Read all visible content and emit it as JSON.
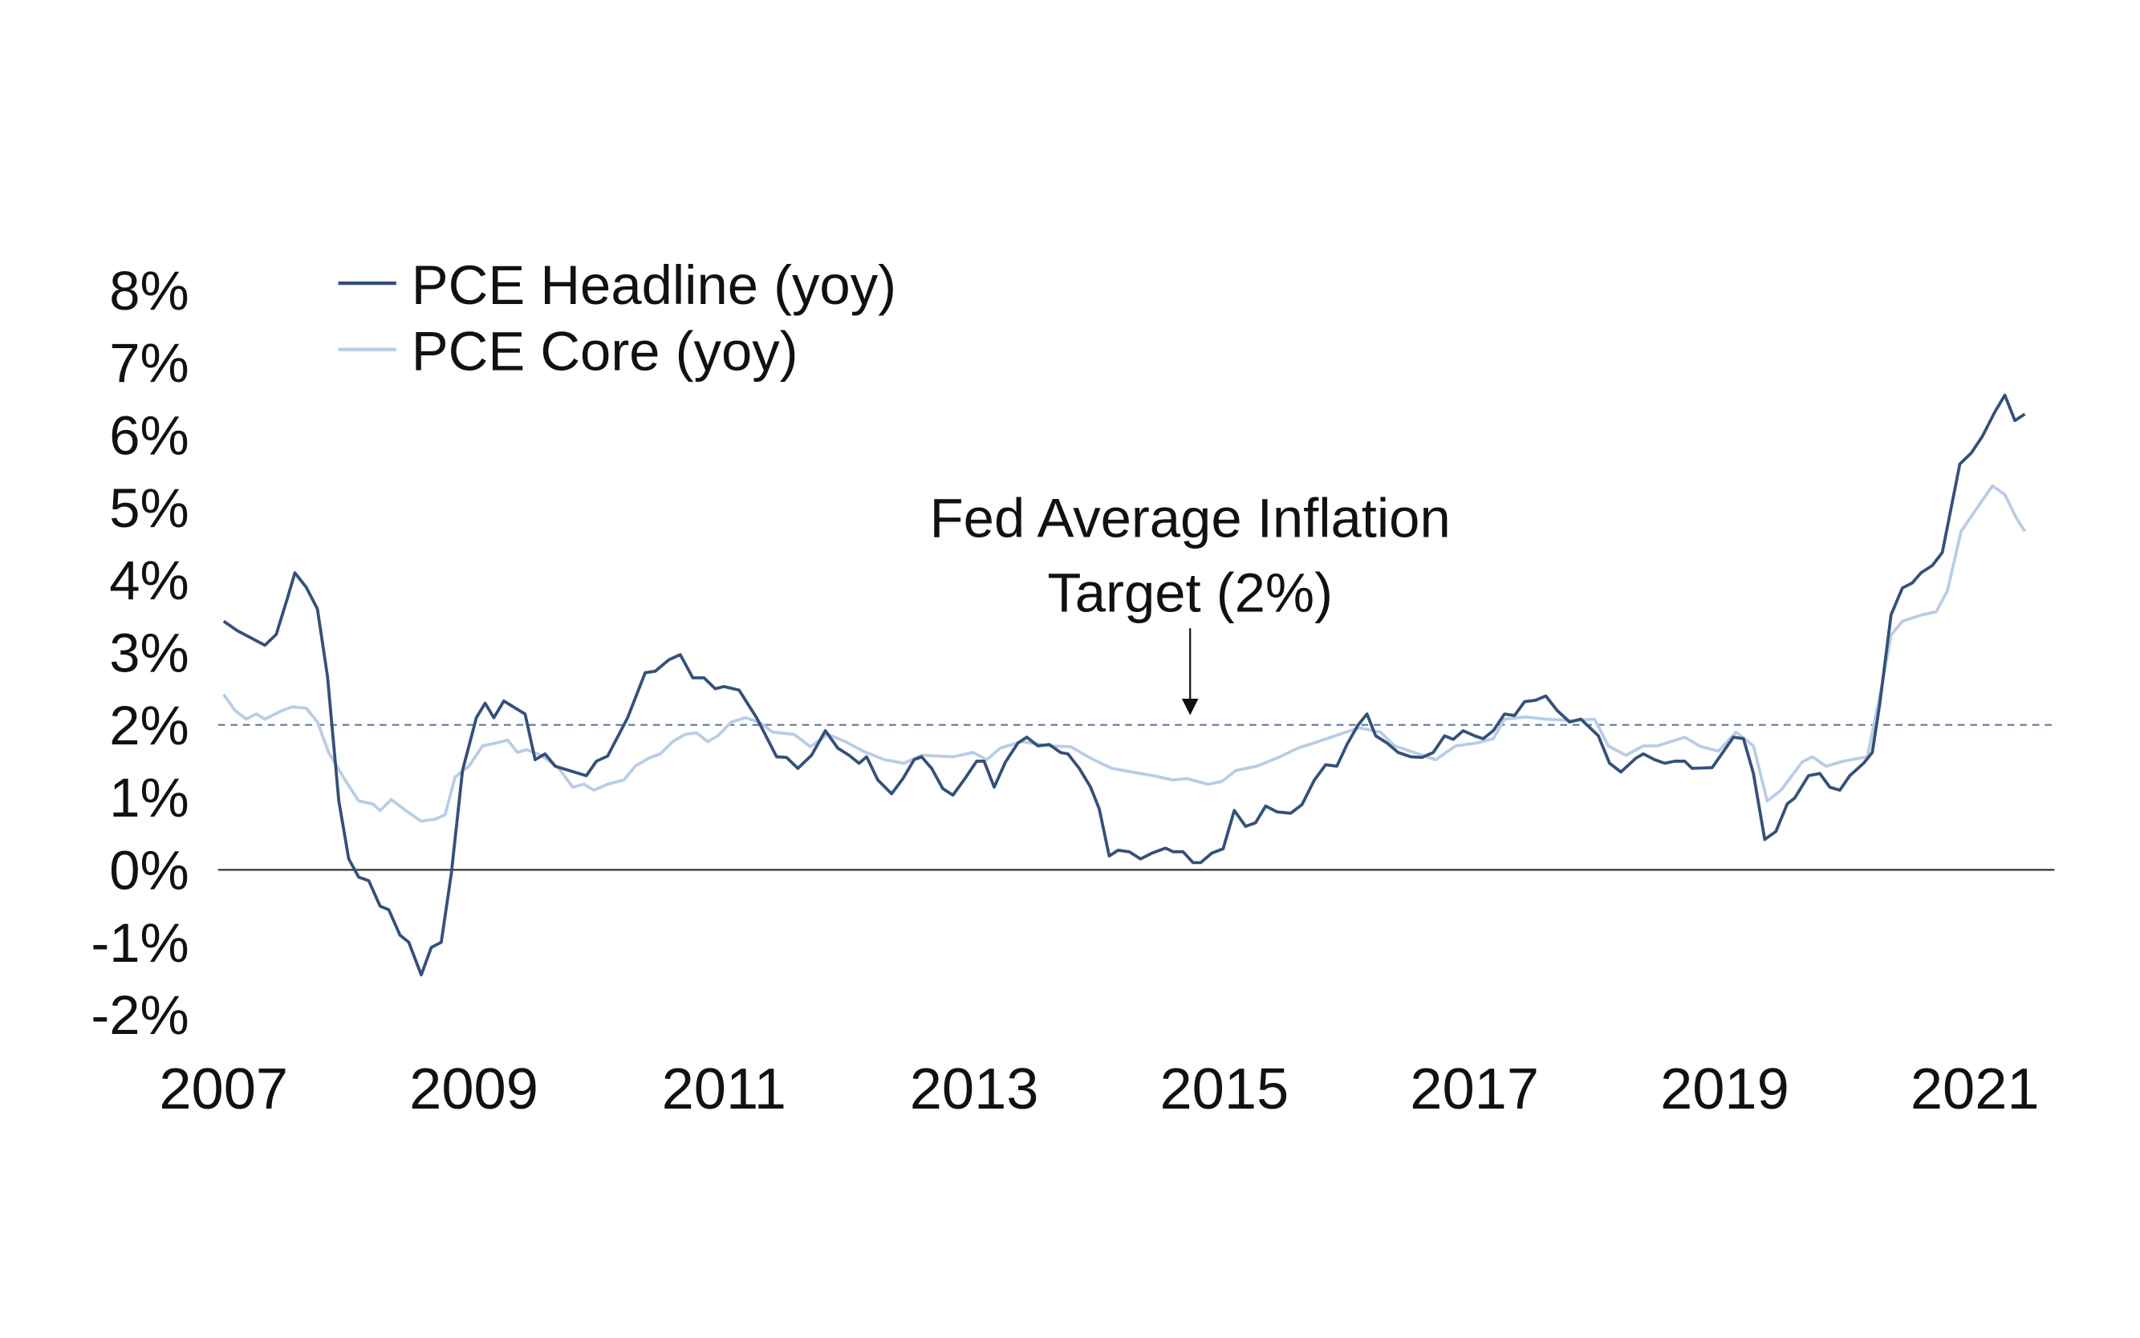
{
  "chart_data": {
    "type": "line",
    "title": "",
    "xlabel": "",
    "ylabel": "",
    "xlim": [
      2007,
      2021.6
    ],
    "ylim": [
      -2,
      8
    ],
    "y_ticks": [
      "8%",
      "7%",
      "6%",
      "5%",
      "4%",
      "3%",
      "2%",
      "1%",
      "0%",
      "-1%",
      "-2%"
    ],
    "y_tick_values": [
      8,
      7,
      6,
      5,
      4,
      3,
      2,
      1,
      0,
      -1,
      -2
    ],
    "x_ticks": [
      "2007",
      "2009",
      "2011",
      "2013",
      "2015",
      "2017",
      "2019",
      "2021"
    ],
    "x_tick_values": [
      2007,
      2009,
      2011,
      2013,
      2015,
      2017,
      2019,
      2021
    ],
    "grid": false,
    "legend_position": "top-left",
    "reference_line": {
      "value": 2,
      "style": "dashed",
      "color": "#5b77a3"
    },
    "annotation": {
      "lines": [
        "Fed Average Inflation",
        "Target (2%)"
      ],
      "points_to": 2
    },
    "series": [
      {
        "name": "PCE Headline (yoy)",
        "color": "#34507a",
        "points": [
          [
            2007.0,
            3.43
          ],
          [
            2007.11,
            3.3
          ],
          [
            2007.22,
            3.2
          ],
          [
            2007.33,
            3.1
          ],
          [
            2007.42,
            3.25
          ],
          [
            2007.51,
            3.75
          ],
          [
            2007.57,
            4.1
          ],
          [
            2007.66,
            3.9
          ],
          [
            2007.75,
            3.6
          ],
          [
            2007.83,
            2.67
          ],
          [
            2007.92,
            0.95
          ],
          [
            2008.0,
            0.15
          ],
          [
            2008.08,
            -0.1
          ],
          [
            2008.16,
            -0.15
          ],
          [
            2008.25,
            -0.5
          ],
          [
            2008.32,
            -0.55
          ],
          [
            2008.41,
            -0.9
          ],
          [
            2008.48,
            -1.0
          ],
          [
            2008.58,
            -1.45
          ],
          [
            2008.66,
            -1.07
          ],
          [
            2008.74,
            -1.0
          ],
          [
            2008.82,
            -0.05
          ],
          [
            2008.91,
            1.37
          ],
          [
            2009.02,
            2.1
          ],
          [
            2009.09,
            2.3
          ],
          [
            2009.16,
            2.1
          ],
          [
            2009.24,
            2.33
          ],
          [
            2009.41,
            2.15
          ],
          [
            2009.49,
            1.52
          ],
          [
            2009.57,
            1.6
          ],
          [
            2009.65,
            1.43
          ],
          [
            2009.9,
            1.3
          ],
          [
            2009.98,
            1.5
          ],
          [
            2010.07,
            1.57
          ],
          [
            2010.23,
            2.1
          ],
          [
            2010.37,
            2.72
          ],
          [
            2010.45,
            2.74
          ],
          [
            2010.56,
            2.9
          ],
          [
            2010.65,
            2.97
          ],
          [
            2010.75,
            2.65
          ],
          [
            2010.84,
            2.65
          ],
          [
            2010.93,
            2.5
          ],
          [
            2011.0,
            2.53
          ],
          [
            2011.12,
            2.48
          ],
          [
            2011.26,
            2.1
          ],
          [
            2011.42,
            1.56
          ],
          [
            2011.5,
            1.55
          ],
          [
            2011.59,
            1.4
          ],
          [
            2011.7,
            1.58
          ],
          [
            2011.81,
            1.92
          ],
          [
            2011.91,
            1.68
          ],
          [
            2012.0,
            1.58
          ],
          [
            2012.08,
            1.47
          ],
          [
            2012.14,
            1.56
          ],
          [
            2012.23,
            1.24
          ],
          [
            2012.34,
            1.05
          ],
          [
            2012.43,
            1.26
          ],
          [
            2012.52,
            1.52
          ],
          [
            2012.58,
            1.56
          ],
          [
            2012.66,
            1.4
          ],
          [
            2012.75,
            1.12
          ],
          [
            2012.83,
            1.03
          ],
          [
            2012.93,
            1.27
          ],
          [
            2013.02,
            1.5
          ],
          [
            2013.08,
            1.5
          ],
          [
            2013.16,
            1.14
          ],
          [
            2013.25,
            1.49
          ],
          [
            2013.35,
            1.75
          ],
          [
            2013.42,
            1.83
          ],
          [
            2013.51,
            1.71
          ],
          [
            2013.6,
            1.73
          ],
          [
            2013.69,
            1.62
          ],
          [
            2013.75,
            1.6
          ],
          [
            2013.84,
            1.4
          ],
          [
            2013.93,
            1.14
          ],
          [
            2014.0,
            0.84
          ],
          [
            2014.08,
            0.19
          ],
          [
            2014.15,
            0.27
          ],
          [
            2014.24,
            0.25
          ],
          [
            2014.33,
            0.15
          ],
          [
            2014.42,
            0.23
          ],
          [
            2014.53,
            0.3
          ],
          [
            2014.59,
            0.25
          ],
          [
            2014.67,
            0.25
          ],
          [
            2014.75,
            0.1
          ],
          [
            2014.81,
            0.1
          ],
          [
            2014.9,
            0.23
          ],
          [
            2014.99,
            0.29
          ],
          [
            2015.08,
            0.82
          ],
          [
            2015.17,
            0.6
          ],
          [
            2015.25,
            0.65
          ],
          [
            2015.33,
            0.88
          ],
          [
            2015.42,
            0.8
          ],
          [
            2015.53,
            0.78
          ],
          [
            2015.62,
            0.9
          ],
          [
            2015.72,
            1.24
          ],
          [
            2015.81,
            1.45
          ],
          [
            2015.9,
            1.43
          ],
          [
            2015.98,
            1.73
          ],
          [
            2016.07,
            2.0
          ],
          [
            2016.14,
            2.15
          ],
          [
            2016.21,
            1.85
          ],
          [
            2016.3,
            1.75
          ],
          [
            2016.39,
            1.62
          ],
          [
            2016.49,
            1.56
          ],
          [
            2016.58,
            1.55
          ],
          [
            2016.67,
            1.62
          ],
          [
            2016.76,
            1.85
          ],
          [
            2016.83,
            1.8
          ],
          [
            2016.91,
            1.92
          ],
          [
            2017.0,
            1.85
          ],
          [
            2017.07,
            1.81
          ],
          [
            2017.15,
            1.92
          ],
          [
            2017.24,
            2.15
          ],
          [
            2017.32,
            2.13
          ],
          [
            2017.4,
            2.32
          ],
          [
            2017.49,
            2.34
          ],
          [
            2017.57,
            2.4
          ],
          [
            2017.66,
            2.2
          ],
          [
            2017.76,
            2.04
          ],
          [
            2017.85,
            2.08
          ],
          [
            2017.99,
            1.85
          ],
          [
            2018.08,
            1.47
          ],
          [
            2018.17,
            1.35
          ],
          [
            2018.29,
            1.54
          ],
          [
            2018.35,
            1.6
          ],
          [
            2018.44,
            1.52
          ],
          [
            2018.52,
            1.47
          ],
          [
            2018.6,
            1.5
          ],
          [
            2018.68,
            1.5
          ],
          [
            2018.74,
            1.4
          ],
          [
            2018.9,
            1.41
          ],
          [
            2019.07,
            1.83
          ],
          [
            2019.15,
            1.81
          ],
          [
            2019.23,
            1.33
          ],
          [
            2019.32,
            0.42
          ],
          [
            2019.41,
            0.53
          ],
          [
            2019.5,
            0.91
          ],
          [
            2019.56,
            0.99
          ],
          [
            2019.67,
            1.3
          ],
          [
            2019.76,
            1.33
          ],
          [
            2019.84,
            1.14
          ],
          [
            2019.92,
            1.1
          ],
          [
            2020.0,
            1.3
          ],
          [
            2020.11,
            1.47
          ],
          [
            2020.18,
            1.62
          ],
          [
            2020.24,
            2.29
          ],
          [
            2020.33,
            3.52
          ],
          [
            2020.42,
            3.89
          ],
          [
            2020.5,
            3.96
          ],
          [
            2020.57,
            4.1
          ],
          [
            2020.66,
            4.2
          ],
          [
            2020.74,
            4.38
          ],
          [
            2020.88,
            5.6
          ],
          [
            2020.97,
            5.75
          ],
          [
            2021.06,
            5.98
          ],
          [
            2021.16,
            6.32
          ],
          [
            2021.24,
            6.55
          ],
          [
            2021.32,
            6.2
          ],
          [
            2021.4,
            6.29
          ]
        ]
      },
      {
        "name": "PCE Core (yoy)",
        "color": "#b8cde6",
        "points": [
          [
            2007.0,
            2.42
          ],
          [
            2007.09,
            2.2
          ],
          [
            2007.18,
            2.08
          ],
          [
            2007.26,
            2.15
          ],
          [
            2007.33,
            2.08
          ],
          [
            2007.47,
            2.2
          ],
          [
            2007.55,
            2.25
          ],
          [
            2007.66,
            2.23
          ],
          [
            2007.75,
            2.04
          ],
          [
            2007.84,
            1.62
          ],
          [
            2007.97,
            1.24
          ],
          [
            2008.08,
            0.95
          ],
          [
            2008.19,
            0.91
          ],
          [
            2008.25,
            0.82
          ],
          [
            2008.34,
            0.97
          ],
          [
            2008.47,
            0.8
          ],
          [
            2008.58,
            0.67
          ],
          [
            2008.69,
            0.7
          ],
          [
            2008.77,
            0.76
          ],
          [
            2008.85,
            1.28
          ],
          [
            2008.96,
            1.43
          ],
          [
            2009.07,
            1.71
          ],
          [
            2009.18,
            1.75
          ],
          [
            2009.27,
            1.79
          ],
          [
            2009.35,
            1.62
          ],
          [
            2009.42,
            1.66
          ],
          [
            2009.54,
            1.58
          ],
          [
            2009.68,
            1.4
          ],
          [
            2009.79,
            1.14
          ],
          [
            2009.88,
            1.18
          ],
          [
            2009.96,
            1.1
          ],
          [
            2010.07,
            1.18
          ],
          [
            2010.2,
            1.24
          ],
          [
            2010.29,
            1.43
          ],
          [
            2010.4,
            1.54
          ],
          [
            2010.49,
            1.6
          ],
          [
            2010.59,
            1.77
          ],
          [
            2010.69,
            1.87
          ],
          [
            2010.78,
            1.89
          ],
          [
            2010.87,
            1.77
          ],
          [
            2010.95,
            1.85
          ],
          [
            2011.06,
            2.04
          ],
          [
            2011.17,
            2.1
          ],
          [
            2011.28,
            2.04
          ],
          [
            2011.39,
            1.9
          ],
          [
            2011.56,
            1.87
          ],
          [
            2011.69,
            1.7
          ],
          [
            2011.83,
            1.87
          ],
          [
            2011.97,
            1.77
          ],
          [
            2012.11,
            1.64
          ],
          [
            2012.28,
            1.52
          ],
          [
            2012.44,
            1.47
          ],
          [
            2012.58,
            1.58
          ],
          [
            2012.83,
            1.56
          ],
          [
            2012.99,
            1.62
          ],
          [
            2013.1,
            1.52
          ],
          [
            2013.21,
            1.68
          ],
          [
            2013.38,
            1.77
          ],
          [
            2013.6,
            1.71
          ],
          [
            2013.77,
            1.7
          ],
          [
            2013.93,
            1.54
          ],
          [
            2014.1,
            1.4
          ],
          [
            2014.26,
            1.35
          ],
          [
            2014.43,
            1.3
          ],
          [
            2014.59,
            1.24
          ],
          [
            2014.7,
            1.26
          ],
          [
            2014.87,
            1.18
          ],
          [
            2014.98,
            1.22
          ],
          [
            2015.09,
            1.37
          ],
          [
            2015.26,
            1.43
          ],
          [
            2015.42,
            1.54
          ],
          [
            2015.59,
            1.68
          ],
          [
            2015.75,
            1.77
          ],
          [
            2015.92,
            1.87
          ],
          [
            2016.08,
            1.96
          ],
          [
            2016.25,
            1.9
          ],
          [
            2016.36,
            1.71
          ],
          [
            2016.52,
            1.62
          ],
          [
            2016.69,
            1.52
          ],
          [
            2016.85,
            1.71
          ],
          [
            2017.02,
            1.75
          ],
          [
            2017.15,
            1.81
          ],
          [
            2017.24,
            2.08
          ],
          [
            2017.41,
            2.11
          ],
          [
            2017.57,
            2.08
          ],
          [
            2017.79,
            2.06
          ],
          [
            2017.96,
            2.08
          ],
          [
            2018.07,
            1.71
          ],
          [
            2018.21,
            1.58
          ],
          [
            2018.35,
            1.71
          ],
          [
            2018.46,
            1.71
          ],
          [
            2018.57,
            1.77
          ],
          [
            2018.68,
            1.83
          ],
          [
            2018.81,
            1.7
          ],
          [
            2018.95,
            1.64
          ],
          [
            2019.09,
            1.9
          ],
          [
            2019.23,
            1.71
          ],
          [
            2019.34,
            0.95
          ],
          [
            2019.45,
            1.1
          ],
          [
            2019.62,
            1.49
          ],
          [
            2019.7,
            1.56
          ],
          [
            2019.81,
            1.43
          ],
          [
            2019.95,
            1.5
          ],
          [
            2020.14,
            1.56
          ],
          [
            2020.25,
            2.48
          ],
          [
            2020.33,
            3.24
          ],
          [
            2020.42,
            3.43
          ],
          [
            2020.58,
            3.52
          ],
          [
            2020.69,
            3.56
          ],
          [
            2020.78,
            3.85
          ],
          [
            2020.89,
            4.67
          ],
          [
            2021.0,
            4.95
          ],
          [
            2021.14,
            5.3
          ],
          [
            2021.24,
            5.18
          ],
          [
            2021.33,
            4.86
          ],
          [
            2021.4,
            4.67
          ]
        ]
      }
    ]
  }
}
